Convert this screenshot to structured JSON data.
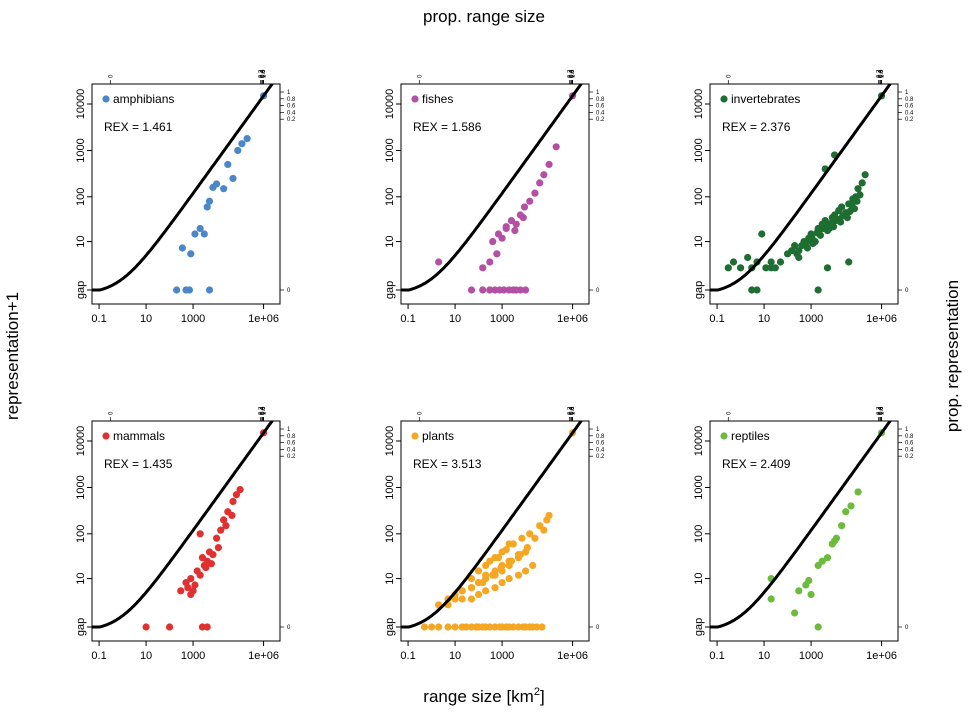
{
  "figure": {
    "top_label": "prop. range size",
    "left_label": "representation+1",
    "right_label": "prop. representation",
    "bottom_label_main": "range size [km",
    "bottom_label_sup": "2",
    "bottom_label_end": "]"
  },
  "axes": {
    "x_ticks": [
      {
        "value": 0.1,
        "label": "0.1"
      },
      {
        "value": 10,
        "label": "10"
      },
      {
        "value": 1000,
        "label": "1000"
      },
      {
        "value": 1000000,
        "label": "1e+06"
      }
    ],
    "y_ticks": [
      {
        "value": 0,
        "label": "gap"
      },
      {
        "value": 10,
        "label": "10"
      },
      {
        "value": 100,
        "label": "100"
      },
      {
        "value": 1000,
        "label": "1000"
      },
      {
        "value": 10000,
        "label": "10000"
      }
    ],
    "top_ticks": [
      {
        "value": 0,
        "label": "0"
      },
      {
        "value": 0.2,
        "label": "0.2"
      },
      {
        "value": 0.4,
        "label": "0.4"
      },
      {
        "value": 0.6,
        "label": "0.6"
      },
      {
        "value": 0.8,
        "label": "0.8"
      },
      {
        "value": 1,
        "label": "1"
      }
    ],
    "right_ticks": [
      {
        "value": 0,
        "label": "0"
      },
      {
        "value": 0.2,
        "label": "0.2"
      },
      {
        "value": 0.4,
        "label": "0.4"
      },
      {
        "value": 0.6,
        "label": "0.6"
      },
      {
        "value": 0.8,
        "label": "0.8"
      },
      {
        "value": 1,
        "label": "1"
      }
    ],
    "x_scale": "log",
    "y_scale": "log (representation+1)",
    "xlim": [
      0.05,
      5000000
    ],
    "ylim": [
      0,
      20000
    ]
  },
  "chart_data": [
    {
      "type": "scatter",
      "name": "amphibians",
      "rex_label": "REX = ",
      "rex": "1.461",
      "color": "#4a86c8",
      "curve_exponent": 1.461,
      "x": [
        1000000,
        200,
        500,
        700,
        5000,
        350,
        800,
        1200,
        2000,
        3000,
        4000,
        5000,
        7000,
        10000,
        20000,
        30000,
        50000,
        80000,
        120000,
        200000
      ],
      "y": [
        15000,
        0,
        0,
        0,
        0,
        7,
        5,
        15,
        20,
        15,
        60,
        80,
        160,
        190,
        150,
        500,
        250,
        1000,
        1400,
        1800
      ]
    },
    {
      "type": "scatter",
      "name": "fishes",
      "rex_label": "REX = ",
      "rex": "1.586",
      "color": "#b450a4",
      "curve_exponent": 1.586,
      "x": [
        1000000,
        2,
        50,
        150,
        300,
        500,
        800,
        1200,
        2000,
        3000,
        4000,
        6000,
        10000,
        150,
        300,
        600,
        1000,
        1500,
        2500,
        4000,
        6000,
        9000,
        15000,
        25000,
        40000,
        60000,
        100000,
        200000,
        400,
        700,
        1500,
        3500,
        8000
      ],
      "y": [
        15000,
        3,
        0,
        0,
        0,
        0,
        0,
        0,
        0,
        0,
        0,
        0,
        0,
        2,
        3,
        5,
        12,
        20,
        30,
        25,
        40,
        60,
        80,
        120,
        200,
        300,
        500,
        1200,
        10,
        15,
        22,
        18,
        35
      ]
    },
    {
      "type": "scatter",
      "name": "invertebrates",
      "rex_label": "REX = ",
      "rex": "2.376",
      "color": "#1e6e32",
      "curve_exponent": 2.376,
      "x": [
        1000000,
        0.3,
        0.5,
        1,
        2,
        3,
        5,
        8,
        12,
        20,
        30,
        3,
        5,
        20,
        50,
        100,
        200,
        300,
        500,
        800,
        1000,
        1500,
        2000,
        3000,
        4000,
        6000,
        8000,
        10000,
        15000,
        20000,
        30000,
        40000,
        60000,
        80000,
        100000,
        150000,
        200000,
        300,
        700,
        1200,
        2500,
        5000,
        9000,
        18000,
        35000,
        70000,
        150,
        400,
        900,
        1800,
        3500,
        7000,
        14000,
        28000,
        55000,
        250,
        600,
        1100,
        2200,
        4500,
        11000,
        22000,
        45000,
        90000,
        120000,
        2000,
        5000,
        40000,
        4000,
        10000
      ],
      "y": [
        15000,
        2,
        3,
        2,
        4,
        2,
        3,
        15,
        2,
        3,
        2,
        0,
        0,
        2,
        3,
        5,
        8,
        6,
        10,
        12,
        15,
        10,
        20,
        25,
        30,
        20,
        35,
        40,
        50,
        60,
        45,
        70,
        90,
        100,
        150,
        200,
        300,
        4,
        7,
        9,
        14,
        18,
        22,
        28,
        35,
        55,
        6,
        8,
        11,
        16,
        20,
        26,
        32,
        40,
        65,
        5,
        9,
        12,
        18,
        24,
        30,
        38,
        48,
        80,
        110,
        0,
        2,
        3,
        400,
        800
      ]
    },
    {
      "type": "scatter",
      "name": "mammals",
      "rex_label": "REX = ",
      "rex": "1.435",
      "color": "#e03030",
      "curve_exponent": 1.435,
      "x": [
        1000000,
        10,
        100,
        300,
        500,
        600,
        800,
        1000,
        1500,
        2000,
        2500,
        3000,
        4000,
        5000,
        7000,
        10000,
        15000,
        20000,
        30000,
        50000,
        70000,
        100000,
        800,
        1200,
        2000,
        3500,
        6000,
        12000,
        25000,
        45000,
        2500,
        4000
      ],
      "y": [
        15000,
        0,
        0,
        5,
        8,
        6,
        10,
        5,
        15,
        100,
        30,
        20,
        25,
        40,
        35,
        80,
        120,
        200,
        300,
        500,
        700,
        900,
        4,
        7,
        12,
        18,
        22,
        50,
        150,
        250,
        0,
        0
      ]
    },
    {
      "type": "scatter",
      "name": "plants",
      "rex_label": "REX = ",
      "rex": "3.513",
      "color": "#f5a623",
      "curve_exponent": 3.513,
      "x": [
        1000000,
        0.5,
        1,
        2,
        5,
        10,
        20,
        30,
        50,
        80,
        100,
        150,
        200,
        300,
        500,
        800,
        1000,
        1500,
        2000,
        3000,
        5000,
        8000,
        10000,
        15000,
        20000,
        30000,
        50000,
        2,
        5,
        10,
        20,
        50,
        100,
        200,
        500,
        1000,
        2000,
        5000,
        10000,
        20000,
        5,
        10,
        20,
        50,
        100,
        200,
        500,
        1000,
        2000,
        5000,
        10000,
        20,
        50,
        100,
        200,
        500,
        1000,
        2000,
        5000,
        50,
        100,
        200,
        500,
        1000,
        2000,
        300,
        700,
        1500,
        3000,
        7000,
        15000,
        40000,
        80000,
        150,
        400,
        900,
        2500,
        6000,
        12000,
        25000,
        60000,
        100000
      ],
      "y": [
        15000,
        0,
        0,
        0,
        0,
        0,
        0,
        0,
        0,
        0,
        0,
        0,
        0,
        0,
        0,
        0,
        0,
        0,
        0,
        0,
        0,
        0,
        0,
        0,
        0,
        0,
        0,
        2,
        2,
        3,
        3,
        3,
        4,
        5,
        6,
        8,
        10,
        12,
        15,
        20,
        3,
        4,
        5,
        6,
        8,
        10,
        12,
        15,
        20,
        30,
        40,
        5,
        6,
        8,
        12,
        15,
        20,
        25,
        35,
        10,
        15,
        20,
        30,
        40,
        60,
        25,
        30,
        45,
        60,
        80,
        100,
        150,
        200,
        8,
        12,
        18,
        25,
        35,
        50,
        80,
        120,
        250
      ]
    },
    {
      "type": "scatter",
      "name": "reptiles",
      "rex_label": "REX = ",
      "rex": "2.409",
      "color": "#6cbb3c",
      "curve_exponent": 2.409,
      "x": [
        1000000,
        20,
        20,
        200,
        300,
        600,
        800,
        1000,
        2000,
        3000,
        5000,
        8000,
        10000,
        12000,
        20000,
        30000,
        50000,
        100000,
        2000
      ],
      "y": [
        15000,
        10,
        3,
        1,
        5,
        7,
        9,
        4,
        20,
        25,
        30,
        60,
        70,
        80,
        150,
        300,
        400,
        800,
        0
      ]
    }
  ]
}
